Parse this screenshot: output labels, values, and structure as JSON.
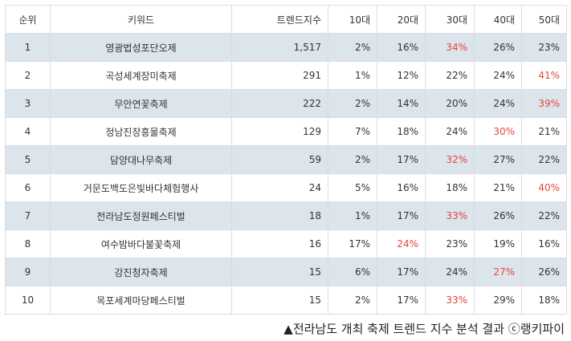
{
  "table": {
    "headers": [
      "순위",
      "키워드",
      "트렌드지수",
      "10대",
      "20대",
      "30대",
      "40대",
      "50대"
    ],
    "rows": [
      {
        "rank": "1",
        "keyword": "영광법성포단오제",
        "index": "1,517",
        "a10": "2%",
        "a20": "16%",
        "a30": "34%",
        "a40": "26%",
        "a50": "23%",
        "highlight": "a30"
      },
      {
        "rank": "2",
        "keyword": "곡성세계장미축제",
        "index": "291",
        "a10": "1%",
        "a20": "12%",
        "a30": "22%",
        "a40": "24%",
        "a50": "41%",
        "highlight": "a50"
      },
      {
        "rank": "3",
        "keyword": "무안연꽃축제",
        "index": "222",
        "a10": "2%",
        "a20": "14%",
        "a30": "20%",
        "a40": "24%",
        "a50": "39%",
        "highlight": "a50"
      },
      {
        "rank": "4",
        "keyword": "정남진장흥물축제",
        "index": "129",
        "a10": "7%",
        "a20": "18%",
        "a30": "24%",
        "a40": "30%",
        "a50": "21%",
        "highlight": "a40"
      },
      {
        "rank": "5",
        "keyword": "담양대나무축제",
        "index": "59",
        "a10": "2%",
        "a20": "17%",
        "a30": "32%",
        "a40": "27%",
        "a50": "22%",
        "highlight": "a30"
      },
      {
        "rank": "6",
        "keyword": "거문도백도은빛바다체험행사",
        "index": "24",
        "a10": "5%",
        "a20": "16%",
        "a30": "18%",
        "a40": "21%",
        "a50": "40%",
        "highlight": "a50"
      },
      {
        "rank": "7",
        "keyword": "전라남도정원페스티벌",
        "index": "18",
        "a10": "1%",
        "a20": "17%",
        "a30": "33%",
        "a40": "26%",
        "a50": "22%",
        "highlight": "a30"
      },
      {
        "rank": "8",
        "keyword": "여수밤바다불꽃축제",
        "index": "16",
        "a10": "17%",
        "a20": "24%",
        "a30": "23%",
        "a40": "19%",
        "a50": "16%",
        "highlight": "a20"
      },
      {
        "rank": "9",
        "keyword": "강진청자축제",
        "index": "15",
        "a10": "6%",
        "a20": "17%",
        "a30": "24%",
        "a40": "27%",
        "a50": "26%",
        "highlight": "a40"
      },
      {
        "rank": "10",
        "keyword": "목포세계마당페스티벌",
        "index": "15",
        "a10": "2%",
        "a20": "17%",
        "a30": "33%",
        "a40": "29%",
        "a50": "18%",
        "highlight": "a30"
      }
    ]
  },
  "caption": "▲전라남도 개최 축제 트렌드 지수 분석 결과 ⓒ랭키파이",
  "colors": {
    "highlight": "#e8443a",
    "row_shade": "#dce4ec",
    "border": "#d9dde3"
  }
}
